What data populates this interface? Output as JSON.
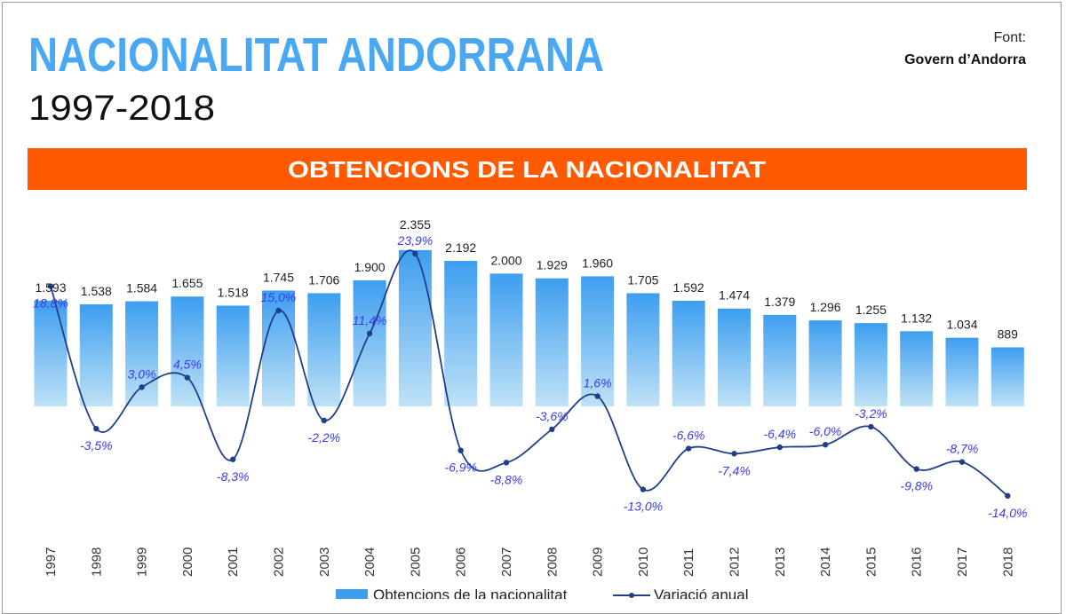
{
  "header": {
    "title": "NACIONALITAT ANDORRANA",
    "subtitle": "1997-2018",
    "source_label": "Font:",
    "source_name": "Govern d’Andorra",
    "banner": "OBTENCIONS DE LA NACIONALITAT"
  },
  "colors": {
    "title": "#4aa8f2",
    "banner": "#ff5a00",
    "bar_top": "#3d9ef0",
    "bar_bottom": "#bfe2f6",
    "line": "#1f3f8a",
    "pct_label": "#3a3aee"
  },
  "chart_data": {
    "type": "bar+line",
    "categories": [
      "1997",
      "1998",
      "1999",
      "2000",
      "2001",
      "2002",
      "2003",
      "2004",
      "2005",
      "2006",
      "2007",
      "2008",
      "2009",
      "2010",
      "2011",
      "2012",
      "2013",
      "2014",
      "2015",
      "2016",
      "2017",
      "2018"
    ],
    "series": [
      {
        "name": "Obtencions de la nacionalitat",
        "type": "bar",
        "values": [
          1593,
          1538,
          1584,
          1655,
          1518,
          1745,
          1706,
          1900,
          2355,
          2192,
          2000,
          1929,
          1960,
          1705,
          1592,
          1474,
          1379,
          1296,
          1255,
          1132,
          1034,
          889
        ],
        "labels": [
          "1.593",
          "1.538",
          "1.584",
          "1.655",
          "1.518",
          "1.745",
          "1.706",
          "1.900",
          "2.355",
          "2.192",
          "2.000",
          "1.929",
          "1.960",
          "1.705",
          "1.592",
          "1.474",
          "1.379",
          "1.296",
          "1.255",
          "1.132",
          "1.034",
          "889"
        ]
      },
      {
        "name": "Variació anual",
        "type": "line",
        "values": [
          18.8,
          -3.5,
          3.0,
          4.5,
          -8.3,
          15.0,
          -2.2,
          11.4,
          23.9,
          -6.9,
          -8.8,
          -3.6,
          1.6,
          -13.0,
          -6.6,
          -7.4,
          -6.4,
          -6.0,
          -3.2,
          -9.8,
          -8.7,
          -14.0
        ],
        "labels": [
          "18,8%",
          "-3,5%",
          "3,0%",
          "4,5%",
          "-8,3%",
          "15,0%",
          "-2,2%",
          "11,4%",
          "23,9%",
          "-6,9%",
          "-8,8%",
          "-3,6%",
          "1,6%",
          "-13,0%",
          "-6,6%",
          "-7,4%",
          "-6,4%",
          "-6,0%",
          "-3,2%",
          "-9,8%",
          "-8,7%",
          "-14,0%"
        ]
      }
    ],
    "legend_position": "bottom",
    "grid": false
  }
}
